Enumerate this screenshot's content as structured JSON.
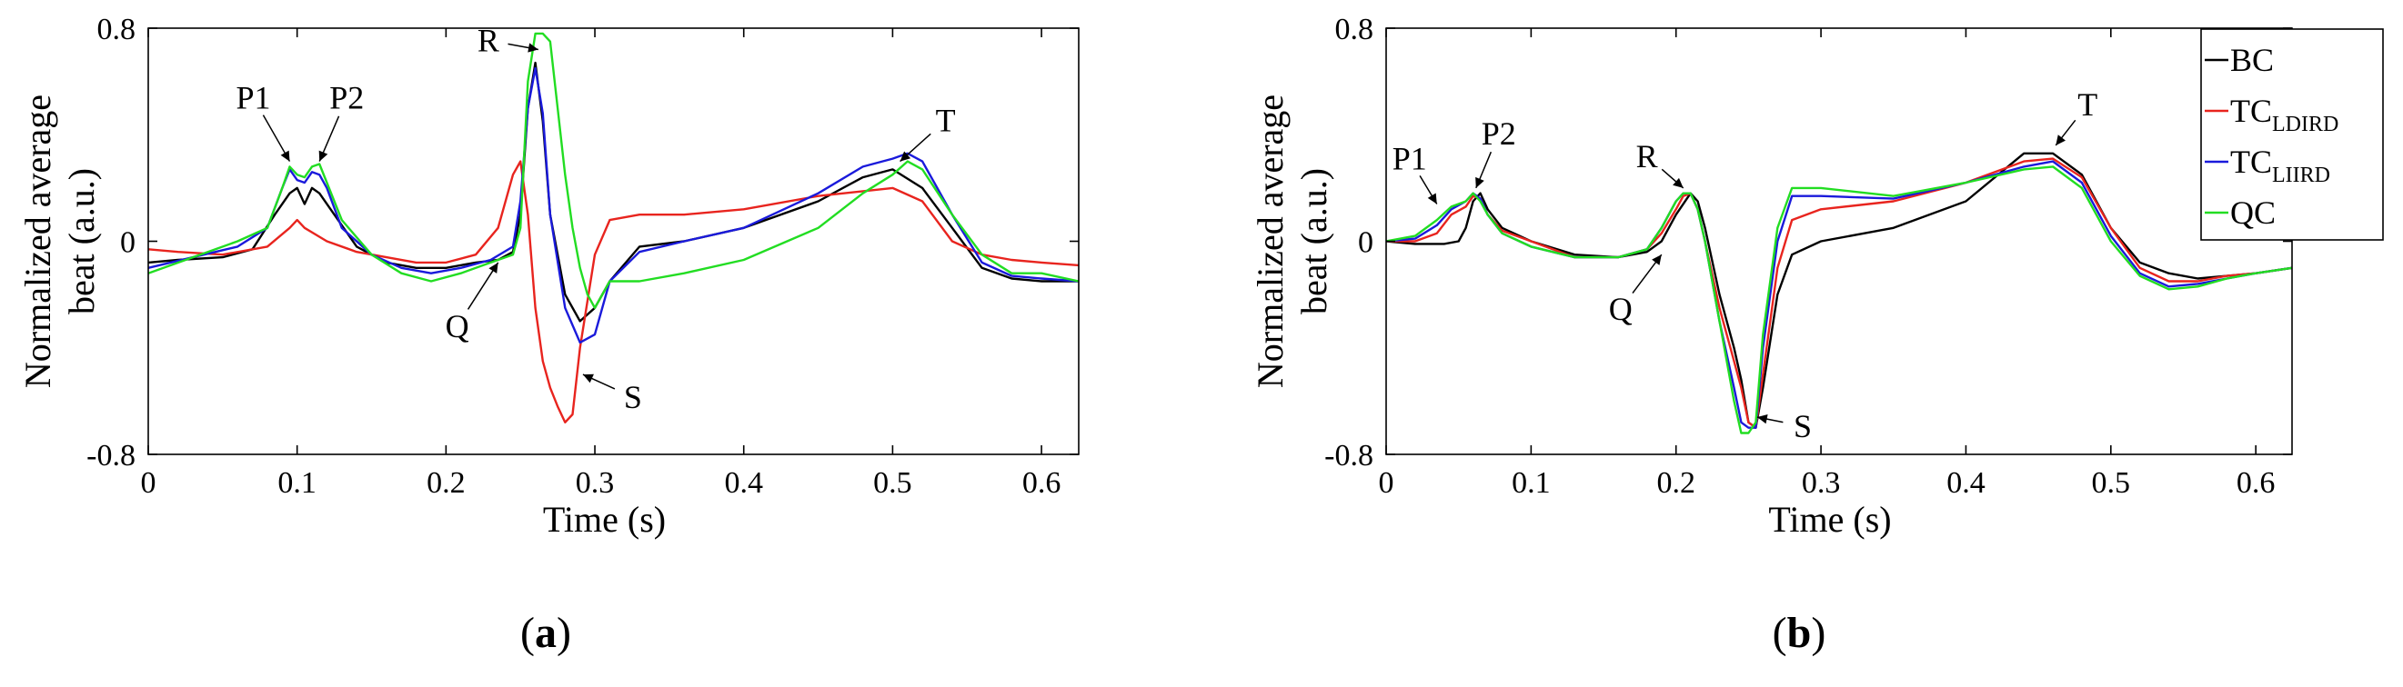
{
  "chart_data": [
    {
      "type": "line",
      "panel_label": {
        "open": "(",
        "letter": "a",
        "close": ")"
      },
      "xlabel": "Time (s)",
      "ylabel_lines": [
        "Normalized average",
        "beat (a.u.)"
      ],
      "xlim": [
        0,
        0.625
      ],
      "ylim": [
        -0.8,
        0.8
      ],
      "xticks": [
        0,
        0.1,
        0.2,
        0.3,
        0.4,
        0.5,
        0.6
      ],
      "xtick_labels": [
        "0",
        "0.1",
        "0.2",
        "0.3",
        "0.4",
        "0.5",
        "0.6"
      ],
      "yticks": [
        -0.8,
        0,
        0.8
      ],
      "ytick_labels": [
        "-0.8",
        "0",
        "0.8"
      ],
      "series": [
        {
          "name": "BC",
          "color": "#000000",
          "x": [
            0,
            0.02,
            0.05,
            0.07,
            0.085,
            0.095,
            0.1,
            0.105,
            0.11,
            0.115,
            0.125,
            0.14,
            0.16,
            0.18,
            0.2,
            0.22,
            0.235,
            0.245,
            0.25,
            0.255,
            0.26,
            0.265,
            0.27,
            0.28,
            0.29,
            0.3,
            0.31,
            0.33,
            0.36,
            0.4,
            0.45,
            0.48,
            0.5,
            0.52,
            0.54,
            0.56,
            0.58,
            0.6,
            0.625
          ],
          "y": [
            -0.08,
            -0.07,
            -0.06,
            -0.03,
            0.1,
            0.18,
            0.2,
            0.14,
            0.2,
            0.18,
            0.1,
            -0.02,
            -0.08,
            -0.1,
            -0.1,
            -0.08,
            -0.07,
            -0.04,
            0.1,
            0.5,
            0.67,
            0.45,
            0.1,
            -0.2,
            -0.3,
            -0.25,
            -0.15,
            -0.02,
            0.0,
            0.05,
            0.15,
            0.24,
            0.27,
            0.2,
            0.05,
            -0.1,
            -0.14,
            -0.15,
            -0.15
          ]
        },
        {
          "name": "TC_LDIRD",
          "color": "#e8241e",
          "x": [
            0,
            0.02,
            0.05,
            0.08,
            0.095,
            0.1,
            0.105,
            0.12,
            0.14,
            0.16,
            0.18,
            0.2,
            0.22,
            0.235,
            0.245,
            0.25,
            0.255,
            0.26,
            0.265,
            0.27,
            0.275,
            0.28,
            0.285,
            0.29,
            0.3,
            0.31,
            0.33,
            0.36,
            0.4,
            0.45,
            0.5,
            0.52,
            0.54,
            0.56,
            0.58,
            0.6,
            0.625
          ],
          "y": [
            -0.03,
            -0.04,
            -0.05,
            -0.02,
            0.05,
            0.08,
            0.05,
            0.0,
            -0.04,
            -0.06,
            -0.08,
            -0.08,
            -0.05,
            0.05,
            0.25,
            0.3,
            0.1,
            -0.25,
            -0.45,
            -0.55,
            -0.62,
            -0.68,
            -0.65,
            -0.4,
            -0.05,
            0.08,
            0.1,
            0.1,
            0.12,
            0.17,
            0.2,
            0.15,
            0.0,
            -0.05,
            -0.07,
            -0.08,
            -0.09
          ]
        },
        {
          "name": "TC_LIIRD",
          "color": "#1a1adb",
          "x": [
            0,
            0.03,
            0.06,
            0.08,
            0.09,
            0.095,
            0.1,
            0.105,
            0.11,
            0.115,
            0.12,
            0.13,
            0.15,
            0.17,
            0.19,
            0.21,
            0.23,
            0.245,
            0.25,
            0.255,
            0.26,
            0.265,
            0.27,
            0.28,
            0.29,
            0.3,
            0.31,
            0.33,
            0.36,
            0.4,
            0.45,
            0.48,
            0.5,
            0.51,
            0.52,
            0.54,
            0.56,
            0.58,
            0.6,
            0.625
          ],
          "y": [
            -0.1,
            -0.06,
            -0.02,
            0.05,
            0.2,
            0.27,
            0.23,
            0.22,
            0.26,
            0.25,
            0.2,
            0.05,
            -0.05,
            -0.1,
            -0.12,
            -0.1,
            -0.07,
            -0.02,
            0.15,
            0.5,
            0.65,
            0.48,
            0.1,
            -0.25,
            -0.38,
            -0.35,
            -0.15,
            -0.04,
            0.0,
            0.05,
            0.18,
            0.28,
            0.31,
            0.33,
            0.3,
            0.1,
            -0.08,
            -0.13,
            -0.14,
            -0.15
          ]
        },
        {
          "name": "QC",
          "color": "#22dd22",
          "x": [
            0,
            0.03,
            0.06,
            0.08,
            0.09,
            0.095,
            0.1,
            0.105,
            0.11,
            0.115,
            0.12,
            0.13,
            0.15,
            0.17,
            0.19,
            0.21,
            0.23,
            0.245,
            0.25,
            0.255,
            0.26,
            0.265,
            0.27,
            0.275,
            0.28,
            0.285,
            0.29,
            0.295,
            0.3,
            0.31,
            0.33,
            0.36,
            0.4,
            0.45,
            0.48,
            0.5,
            0.51,
            0.52,
            0.54,
            0.56,
            0.58,
            0.6,
            0.625
          ],
          "y": [
            -0.12,
            -0.06,
            0.0,
            0.05,
            0.2,
            0.28,
            0.25,
            0.24,
            0.28,
            0.29,
            0.22,
            0.08,
            -0.05,
            -0.12,
            -0.15,
            -0.12,
            -0.08,
            -0.05,
            0.05,
            0.6,
            0.78,
            0.78,
            0.75,
            0.5,
            0.25,
            0.05,
            -0.1,
            -0.2,
            -0.25,
            -0.15,
            -0.15,
            -0.12,
            -0.07,
            0.05,
            0.18,
            0.25,
            0.3,
            0.27,
            0.1,
            -0.05,
            -0.12,
            -0.12,
            -0.15
          ]
        }
      ],
      "annotations": [
        {
          "text": "P1",
          "x": 0.095,
          "y": 0.3
        },
        {
          "text": "P2",
          "x": 0.115,
          "y": 0.3
        },
        {
          "text": "R",
          "x": 0.262,
          "y": 0.72
        },
        {
          "text": "Q",
          "x": 0.235,
          "y": -0.08
        },
        {
          "text": "S",
          "x": 0.292,
          "y": -0.5
        },
        {
          "text": "T",
          "x": 0.505,
          "y": 0.3
        }
      ],
      "legend": null
    },
    {
      "type": "line",
      "panel_label": {
        "open": "(",
        "letter": "b",
        "close": ")"
      },
      "xlabel": "Time (s)",
      "ylabel_lines": [
        "Normalized average",
        "beat (a.u.)"
      ],
      "xlim": [
        0,
        0.625
      ],
      "ylim": [
        -0.8,
        0.8
      ],
      "xticks": [
        0,
        0.1,
        0.2,
        0.3,
        0.4,
        0.5,
        0.6
      ],
      "xtick_labels": [
        "0",
        "0.1",
        "0.2",
        "0.3",
        "0.4",
        "0.5",
        "0.6"
      ],
      "yticks": [
        -0.8,
        0,
        0.8
      ],
      "ytick_labels": [
        "-0.8",
        "0",
        "0.8"
      ],
      "series": [
        {
          "name": "BC",
          "color": "#000000",
          "x": [
            0,
            0.02,
            0.04,
            0.05,
            0.055,
            0.06,
            0.065,
            0.07,
            0.08,
            0.1,
            0.13,
            0.16,
            0.18,
            0.19,
            0.2,
            0.21,
            0.215,
            0.22,
            0.23,
            0.24,
            0.245,
            0.25,
            0.255,
            0.26,
            0.27,
            0.28,
            0.3,
            0.35,
            0.4,
            0.44,
            0.46,
            0.48,
            0.5,
            0.52,
            0.54,
            0.56,
            0.58,
            0.6,
            0.625
          ],
          "y": [
            0.0,
            -0.01,
            -0.01,
            0.0,
            0.05,
            0.15,
            0.18,
            0.12,
            0.05,
            0.0,
            -0.05,
            -0.06,
            -0.04,
            0.0,
            0.1,
            0.18,
            0.15,
            0.05,
            -0.2,
            -0.4,
            -0.52,
            -0.68,
            -0.7,
            -0.55,
            -0.2,
            -0.05,
            0.0,
            0.05,
            0.15,
            0.33,
            0.33,
            0.25,
            0.05,
            -0.08,
            -0.12,
            -0.14,
            -0.13,
            -0.12,
            -0.1
          ]
        },
        {
          "name": "TC_LDIRD",
          "color": "#e8241e",
          "x": [
            0,
            0.02,
            0.035,
            0.045,
            0.055,
            0.06,
            0.065,
            0.07,
            0.08,
            0.1,
            0.13,
            0.16,
            0.18,
            0.19,
            0.2,
            0.205,
            0.21,
            0.215,
            0.22,
            0.23,
            0.24,
            0.245,
            0.25,
            0.255,
            0.26,
            0.27,
            0.28,
            0.3,
            0.35,
            0.4,
            0.44,
            0.46,
            0.48,
            0.5,
            0.52,
            0.54,
            0.56,
            0.58,
            0.6,
            0.625
          ],
          "y": [
            0.0,
            0.0,
            0.03,
            0.1,
            0.13,
            0.17,
            0.16,
            0.1,
            0.04,
            0.0,
            -0.06,
            -0.06,
            -0.03,
            0.03,
            0.12,
            0.17,
            0.18,
            0.12,
            0.0,
            -0.25,
            -0.45,
            -0.55,
            -0.68,
            -0.7,
            -0.5,
            -0.1,
            0.08,
            0.12,
            0.15,
            0.22,
            0.3,
            0.31,
            0.24,
            0.05,
            -0.1,
            -0.15,
            -0.15,
            -0.13,
            -0.12,
            -0.1
          ]
        },
        {
          "name": "TC_LIIRD",
          "color": "#1a1adb",
          "x": [
            0,
            0.02,
            0.035,
            0.045,
            0.055,
            0.06,
            0.065,
            0.07,
            0.08,
            0.1,
            0.13,
            0.16,
            0.18,
            0.19,
            0.2,
            0.205,
            0.21,
            0.215,
            0.22,
            0.23,
            0.24,
            0.245,
            0.25,
            0.255,
            0.26,
            0.27,
            0.28,
            0.3,
            0.35,
            0.4,
            0.44,
            0.46,
            0.48,
            0.5,
            0.52,
            0.54,
            0.56,
            0.58,
            0.6,
            0.625
          ],
          "y": [
            0.0,
            0.01,
            0.06,
            0.12,
            0.15,
            0.18,
            0.16,
            0.1,
            0.03,
            -0.02,
            -0.06,
            -0.06,
            -0.03,
            0.05,
            0.15,
            0.18,
            0.18,
            0.12,
            0.0,
            -0.3,
            -0.55,
            -0.68,
            -0.7,
            -0.7,
            -0.4,
            0.0,
            0.17,
            0.17,
            0.16,
            0.22,
            0.28,
            0.3,
            0.22,
            0.02,
            -0.12,
            -0.17,
            -0.16,
            -0.14,
            -0.12,
            -0.1
          ]
        },
        {
          "name": "QC",
          "color": "#22dd22",
          "x": [
            0,
            0.02,
            0.035,
            0.045,
            0.055,
            0.06,
            0.065,
            0.07,
            0.08,
            0.1,
            0.13,
            0.16,
            0.18,
            0.19,
            0.2,
            0.205,
            0.21,
            0.215,
            0.22,
            0.23,
            0.24,
            0.245,
            0.25,
            0.255,
            0.26,
            0.27,
            0.28,
            0.3,
            0.35,
            0.4,
            0.44,
            0.46,
            0.48,
            0.5,
            0.52,
            0.54,
            0.56,
            0.58,
            0.6,
            0.625
          ],
          "y": [
            0.0,
            0.02,
            0.08,
            0.13,
            0.15,
            0.18,
            0.15,
            0.1,
            0.03,
            -0.02,
            -0.06,
            -0.06,
            -0.03,
            0.05,
            0.15,
            0.18,
            0.18,
            0.12,
            0.0,
            -0.3,
            -0.6,
            -0.72,
            -0.72,
            -0.68,
            -0.35,
            0.05,
            0.2,
            0.2,
            0.17,
            0.22,
            0.27,
            0.28,
            0.2,
            0.0,
            -0.13,
            -0.18,
            -0.17,
            -0.14,
            -0.12,
            -0.1
          ]
        }
      ],
      "annotations": [
        {
          "text": "P1",
          "x": 0.035,
          "y": 0.14
        },
        {
          "text": "P2",
          "x": 0.062,
          "y": 0.2
        },
        {
          "text": "R",
          "x": 0.205,
          "y": 0.2
        },
        {
          "text": "Q",
          "x": 0.19,
          "y": -0.05
        },
        {
          "text": "S",
          "x": 0.256,
          "y": -0.66
        },
        {
          "text": "T",
          "x": 0.462,
          "y": 0.36
        }
      ],
      "legend": {
        "entries": [
          {
            "base": "BC",
            "sub": "",
            "color": "#000000"
          },
          {
            "base": "TC",
            "sub": "LDIRD",
            "color": "#e8241e"
          },
          {
            "base": "TC",
            "sub": "LIIRD",
            "color": "#1a1adb"
          },
          {
            "base": "QC",
            "sub": "",
            "color": "#22dd22"
          }
        ],
        "location": "top-right"
      }
    }
  ]
}
